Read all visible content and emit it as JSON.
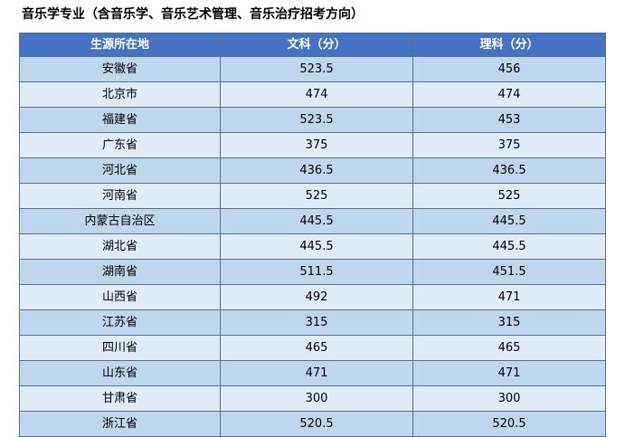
{
  "title": "音乐学专业（含音乐学、音乐艺术管理、音乐治疗招考方向）",
  "table": {
    "headers": [
      "生源所在地",
      "文科（分）",
      "理科（分）"
    ],
    "rows": [
      [
        "安徽省",
        "523.5",
        "456"
      ],
      [
        "北京市",
        "474",
        "474"
      ],
      [
        "福建省",
        "523.5",
        "453"
      ],
      [
        "广东省",
        "375",
        "375"
      ],
      [
        "河北省",
        "436.5",
        "436.5"
      ],
      [
        "河南省",
        "525",
        "525"
      ],
      [
        "内蒙古自治区",
        "445.5",
        "445.5"
      ],
      [
        "湖北省",
        "445.5",
        "445.5"
      ],
      [
        "湖南省",
        "511.5",
        "451.5"
      ],
      [
        "山西省",
        "492",
        "471"
      ],
      [
        "江苏省",
        "315",
        "315"
      ],
      [
        "四川省",
        "465",
        "465"
      ],
      [
        "山东省",
        "471",
        "471"
      ],
      [
        "甘肃省",
        "300",
        "300"
      ],
      [
        "浙江省",
        "520.5",
        "520.5"
      ]
    ]
  }
}
